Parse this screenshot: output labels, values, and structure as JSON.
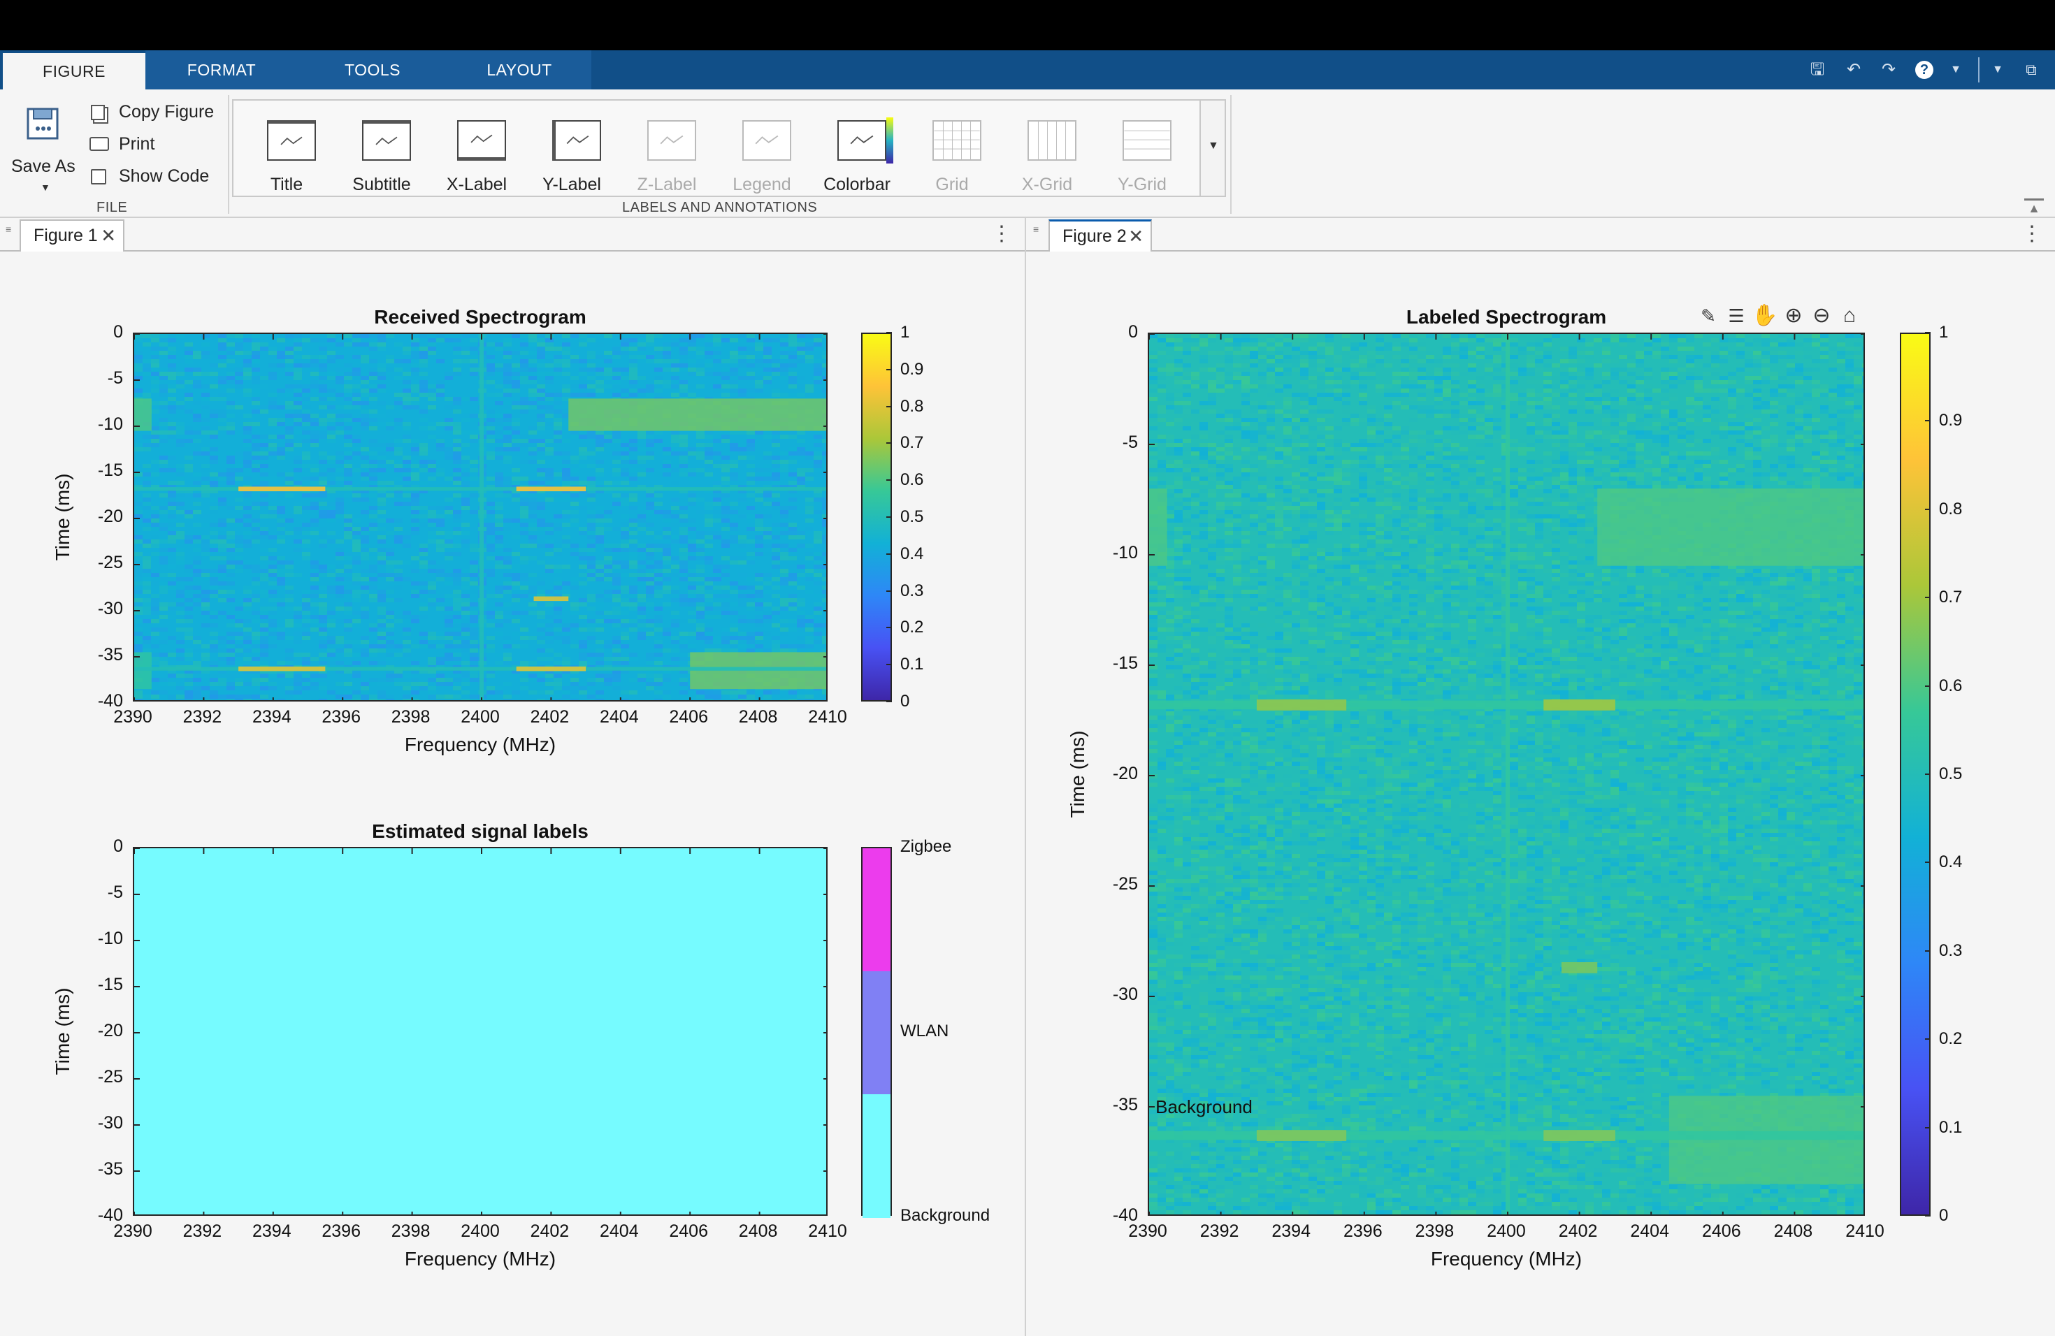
{
  "toolstrip": {
    "tabs": [
      "FIGURE",
      "FORMAT",
      "TOOLS",
      "LAYOUT"
    ],
    "file": {
      "save_as": "Save As",
      "copy_figure": "Copy Figure",
      "print": "Print",
      "show_code": "Show Code",
      "group_label": "FILE"
    },
    "labels_group": {
      "group_label": "LABELS AND ANNOTATIONS",
      "tools": [
        {
          "label": "Title",
          "enabled": true
        },
        {
          "label": "Subtitle",
          "enabled": true
        },
        {
          "label": "X-Label",
          "enabled": true
        },
        {
          "label": "Y-Label",
          "enabled": true
        },
        {
          "label": "Z-Label",
          "enabled": false
        },
        {
          "label": "Legend",
          "enabled": false
        },
        {
          "label": "Colorbar",
          "enabled": true
        },
        {
          "label": "Grid",
          "enabled": false
        },
        {
          "label": "X-Grid",
          "enabled": false
        },
        {
          "label": "Y-Grid",
          "enabled": false
        }
      ]
    }
  },
  "documents": {
    "figure1": {
      "tab_label": "Figure 1"
    },
    "figure2": {
      "tab_label": "Figure 2"
    }
  },
  "chart_data": [
    {
      "id": "received",
      "type": "heatmap",
      "title": "Received Spectrogram",
      "xlabel": "Frequency (MHz)",
      "ylabel": "Time (ms)",
      "xlim": [
        2390,
        2410
      ],
      "ylim": [
        -40,
        0
      ],
      "xticks": [
        2390,
        2392,
        2394,
        2396,
        2398,
        2400,
        2402,
        2404,
        2406,
        2408,
        2410
      ],
      "yticks": [
        0,
        -5,
        -10,
        -15,
        -20,
        -25,
        -30,
        -35,
        -40
      ],
      "colorbar": {
        "ticks": [
          1,
          0.9,
          0.8,
          0.7,
          0.6,
          0.5,
          0.4,
          0.3,
          0.2,
          0.1,
          0
        ],
        "colormap": "parula",
        "range": [
          0,
          1
        ]
      },
      "background_level": 0.42,
      "features": [
        {
          "kind": "band",
          "x": [
            2390,
            2390.5
          ],
          "y": [
            -10.5,
            -7
          ],
          "value": 0.6
        },
        {
          "kind": "band",
          "x": [
            2402.5,
            2410
          ],
          "y": [
            -10.5,
            -7
          ],
          "value": 0.65
        },
        {
          "kind": "band",
          "x": [
            2406,
            2410
          ],
          "y": [
            -38.5,
            -34.5
          ],
          "value": 0.65
        },
        {
          "kind": "band",
          "x": [
            2390,
            2390.5
          ],
          "y": [
            -38.5,
            -34.5
          ],
          "value": 0.55
        },
        {
          "kind": "line",
          "x": [
            2390,
            2410
          ],
          "y": -16.8,
          "value": 0.5
        },
        {
          "kind": "line",
          "x": [
            2390,
            2410
          ],
          "y": -36.3,
          "value": 0.5
        },
        {
          "kind": "burst",
          "x": [
            2393,
            2395.5
          ],
          "y": -16.8,
          "value": 0.85
        },
        {
          "kind": "burst",
          "x": [
            2401,
            2403
          ],
          "y": -16.8,
          "value": 0.85
        },
        {
          "kind": "burst",
          "x": [
            2401.5,
            2402.5
          ],
          "y": -28.7,
          "value": 0.8
        },
        {
          "kind": "burst",
          "x": [
            2393,
            2395.5
          ],
          "y": -36.3,
          "value": 0.8
        },
        {
          "kind": "burst",
          "x": [
            2401,
            2403
          ],
          "y": -36.3,
          "value": 0.8
        },
        {
          "kind": "vline",
          "x": 2400,
          "y": [
            -40,
            0
          ],
          "value": 0.5
        }
      ]
    },
    {
      "id": "labels",
      "type": "heatmap",
      "title": "Estimated signal labels",
      "xlabel": "Frequency (MHz)",
      "ylabel": "Time (ms)",
      "xlim": [
        2390,
        2410
      ],
      "ylim": [
        -40,
        0
      ],
      "xticks": [
        2390,
        2392,
        2394,
        2396,
        2398,
        2400,
        2402,
        2404,
        2406,
        2408,
        2410
      ],
      "yticks": [
        0,
        -5,
        -10,
        -15,
        -20,
        -25,
        -30,
        -35,
        -40
      ],
      "fill_color": "#76fbff",
      "colorbar": {
        "categories": [
          {
            "name": "Zigbee",
            "color": "#ec3ced"
          },
          {
            "name": "WLAN",
            "color": "#8080f4"
          },
          {
            "name": "Background",
            "color": "#76fbff"
          }
        ]
      }
    },
    {
      "id": "labeled",
      "type": "heatmap",
      "title": "Labeled Spectrogram",
      "xlabel": "Frequency (MHz)",
      "ylabel": "Time (ms)",
      "xlim": [
        2390,
        2410
      ],
      "ylim": [
        -40,
        0
      ],
      "xticks": [
        2390,
        2392,
        2394,
        2396,
        2398,
        2400,
        2402,
        2404,
        2406,
        2408,
        2410
      ],
      "yticks": [
        0,
        -5,
        -10,
        -15,
        -20,
        -25,
        -30,
        -35,
        -40
      ],
      "colorbar": {
        "ticks": [
          1,
          0.9,
          0.8,
          0.7,
          0.6,
          0.5,
          0.4,
          0.3,
          0.2,
          0.1,
          0
        ],
        "colormap": "parula",
        "range": [
          0,
          1
        ]
      },
      "background_level": 0.5,
      "annotation": {
        "text": "Background",
        "x": 2390.1,
        "y": -35
      },
      "features": [
        {
          "kind": "band",
          "x": [
            2390,
            2390.5
          ],
          "y": [
            -10.5,
            -7
          ],
          "value": 0.6
        },
        {
          "kind": "band",
          "x": [
            2402.5,
            2410
          ],
          "y": [
            -10.5,
            -7
          ],
          "value": 0.6
        },
        {
          "kind": "band",
          "x": [
            2404.5,
            2410
          ],
          "y": [
            -38.5,
            -34.5
          ],
          "value": 0.6
        },
        {
          "kind": "line",
          "x": [
            2390,
            2410
          ],
          "y": -16.8,
          "value": 0.55
        },
        {
          "kind": "line",
          "x": [
            2390,
            2410
          ],
          "y": -36.3,
          "value": 0.55
        },
        {
          "kind": "burst",
          "x": [
            2393,
            2395.5
          ],
          "y": -16.8,
          "value": 0.68
        },
        {
          "kind": "burst",
          "x": [
            2401,
            2403
          ],
          "y": -16.8,
          "value": 0.7
        },
        {
          "kind": "burst",
          "x": [
            2401.5,
            2402.5
          ],
          "y": -28.7,
          "value": 0.65
        },
        {
          "kind": "burst",
          "x": [
            2393,
            2395.5
          ],
          "y": -36.3,
          "value": 0.66
        },
        {
          "kind": "burst",
          "x": [
            2401,
            2403
          ],
          "y": -36.3,
          "value": 0.66
        },
        {
          "kind": "vline",
          "x": 2400,
          "y": [
            -40,
            0
          ],
          "value": 0.55
        }
      ]
    }
  ]
}
